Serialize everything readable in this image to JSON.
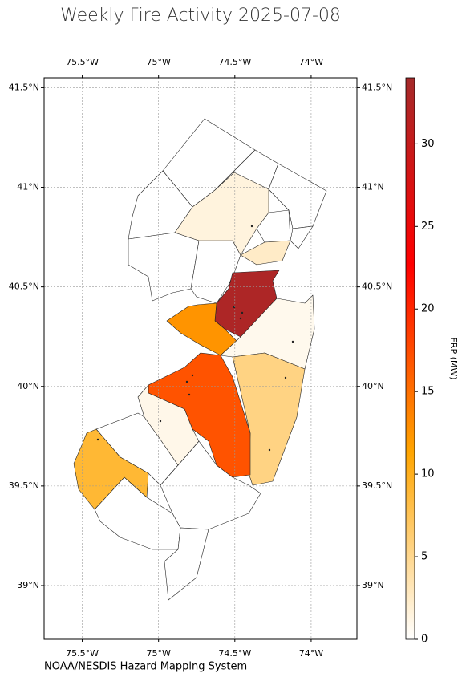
{
  "chart_data": {
    "type": "choropleth",
    "title": "Weekly Fire Activity 2025-07-08",
    "source": "NOAA/NESDIS Hazard Mapping System",
    "xlim": [
      -75.75,
      -73.7
    ],
    "ylim": [
      38.73,
      41.55
    ],
    "xticks": [
      {
        "value": -75.5,
        "label": "75.5°W"
      },
      {
        "value": -75,
        "label": "75°W"
      },
      {
        "value": -74.5,
        "label": "74.5°W"
      },
      {
        "value": -74,
        "label": "74°W"
      }
    ],
    "yticks": [
      {
        "value": 39,
        "label": "39°N"
      },
      {
        "value": 39.5,
        "label": "39.5°N"
      },
      {
        "value": 40,
        "label": "40°N"
      },
      {
        "value": 40.5,
        "label": "40.5°N"
      },
      {
        "value": 41,
        "label": "41°N"
      },
      {
        "value": 41.5,
        "label": "41.5°N"
      }
    ],
    "grid": true,
    "values": [
      1.5,
      2.5,
      33,
      12.5,
      0.8,
      5.5,
      17,
      1,
      9
    ],
    "colorbar": {
      "label": "FRP (MW)",
      "lim": [
        0,
        34
      ],
      "ticks": [
        0,
        5,
        10,
        15,
        20,
        25,
        30
      ],
      "colormap": [
        "#ffffff",
        "#ffa500",
        "#ff0000",
        "#a52a2a"
      ]
    }
  }
}
